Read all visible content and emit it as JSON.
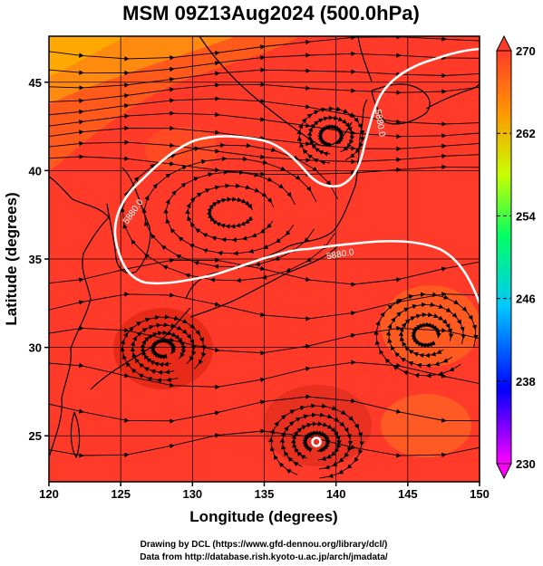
{
  "title": "MSM 09Z13Aug2024 (500.0hPa)",
  "axes": {
    "xlabel": "Longitude (degrees)",
    "ylabel": "Latitude  (degrees)",
    "xticks": [
      "120",
      "125",
      "130",
      "135",
      "140",
      "145",
      "150"
    ],
    "yticks": [
      "25",
      "30",
      "35",
      "40",
      "45"
    ],
    "xrange": [
      120,
      150
    ],
    "yrange": [
      22.4,
      47.6
    ]
  },
  "colorbar": {
    "ticks": [
      "270",
      "262",
      "254",
      "246",
      "238",
      "230"
    ],
    "range": [
      230,
      270
    ],
    "colors": [
      "#ff00ff",
      "#0000ff",
      "#00c8ff",
      "#00ff64",
      "#c8ff00",
      "#ff9600",
      "#ff3c28"
    ]
  },
  "contour": {
    "label": "5880.0",
    "color": "#ffffff"
  },
  "field_colors": {
    "background": "#ff3a28",
    "dark": "#e82a18",
    "warm": "#ff7010",
    "orange": "#ffa000"
  },
  "credits": {
    "line1": "Drawing by DCL (https://www.gfd-dennou.org/library/dcl/)",
    "line2": "Data from http://database.rish.kyoto-u.ac.jp/arch/jmadata/"
  }
}
